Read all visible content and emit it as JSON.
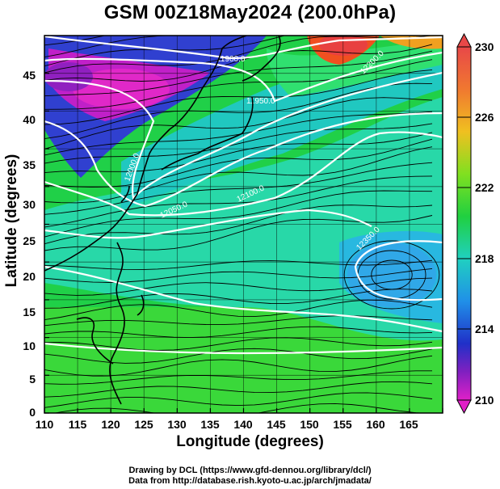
{
  "title": "GSM 00Z18May2024 (200.0hPa)",
  "xlabel": "Longitude (degrees)",
  "ylabel": "Latitude  (degrees)",
  "x_ticks": [
    "110",
    "115",
    "120",
    "125",
    "130",
    "135",
    "140",
    "145",
    "150",
    "155",
    "160",
    "165"
  ],
  "y_ticks": [
    "0",
    "5",
    "10",
    "15",
    "20",
    "25",
    "30",
    "35",
    "40",
    "45"
  ],
  "colorbar": {
    "labels": [
      "230",
      "226",
      "222",
      "218",
      "214",
      "210"
    ],
    "colors": [
      "#e8504a",
      "#f0a020",
      "#d0e020",
      "#28d838",
      "#20c8c8",
      "#2c70e8",
      "#3030c8",
      "#8020c0",
      "#e020c0"
    ]
  },
  "contour_labels": [
    "11900.0",
    "11950.0",
    "12000.0",
    "12050.0",
    "12100.0",
    "12200.0",
    "12350.0"
  ],
  "credits": {
    "line1": "Drawing by DCL (https://www.gfd-dennou.org/library/dcl/)",
    "line2": "Data from http://database.rish.kyoto-u.ac.jp/arch/jmadata/"
  },
  "chart_data": {
    "type": "heatmap",
    "title": "GSM 00Z18May2024 (200.0hPa)",
    "xlabel": "Longitude (degrees)",
    "ylabel": "Latitude  (degrees)",
    "xlim": [
      110,
      170
    ],
    "ylim": [
      0,
      50
    ],
    "colorbar_range": [
      210,
      230
    ],
    "contour_levels_shown": [
      11900.0,
      11950.0,
      12000.0,
      12050.0,
      12100.0,
      12200.0,
      12350.0
    ],
    "overlays": [
      "temperature shading",
      "geopotential height contours",
      "wind streamlines",
      "coastlines"
    ]
  }
}
